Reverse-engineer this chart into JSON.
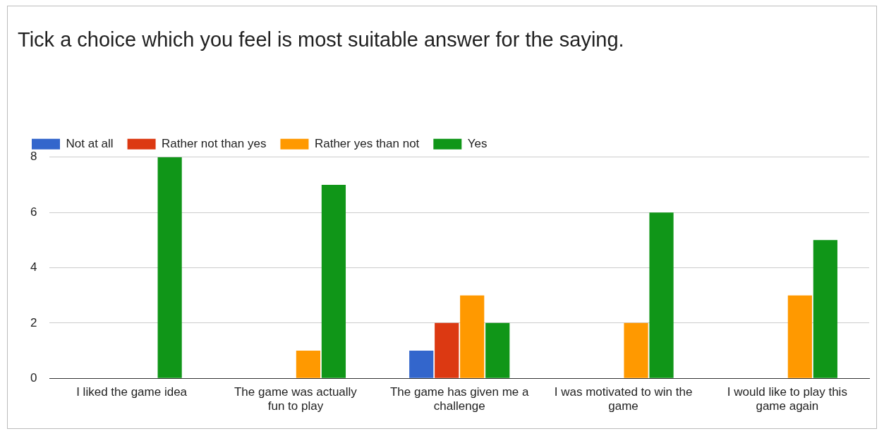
{
  "chart_data": {
    "type": "bar",
    "title": "Tick a choice which you feel is most suitable answer for the saying.",
    "categories": [
      "I liked the game idea",
      "The game was actually fun to play",
      "The game has given me a challenge",
      "I was motivated to win the game",
      "I would like to play this game again"
    ],
    "series": [
      {
        "name": "Not at all",
        "color": "#3366cc",
        "values": [
          0,
          0,
          1,
          0,
          0
        ]
      },
      {
        "name": "Rather not than yes",
        "color": "#dc3912",
        "values": [
          0,
          0,
          2,
          0,
          0
        ]
      },
      {
        "name": "Rather yes than not",
        "color": "#ff9900",
        "values": [
          0,
          1,
          3,
          2,
          3
        ]
      },
      {
        "name": "Yes",
        "color": "#109618",
        "values": [
          8,
          7,
          2,
          6,
          5
        ]
      }
    ],
    "ylim": [
      0,
      8
    ],
    "yticks": [
      0,
      2,
      4,
      6,
      8
    ],
    "grid": "y",
    "legend": "top left"
  }
}
